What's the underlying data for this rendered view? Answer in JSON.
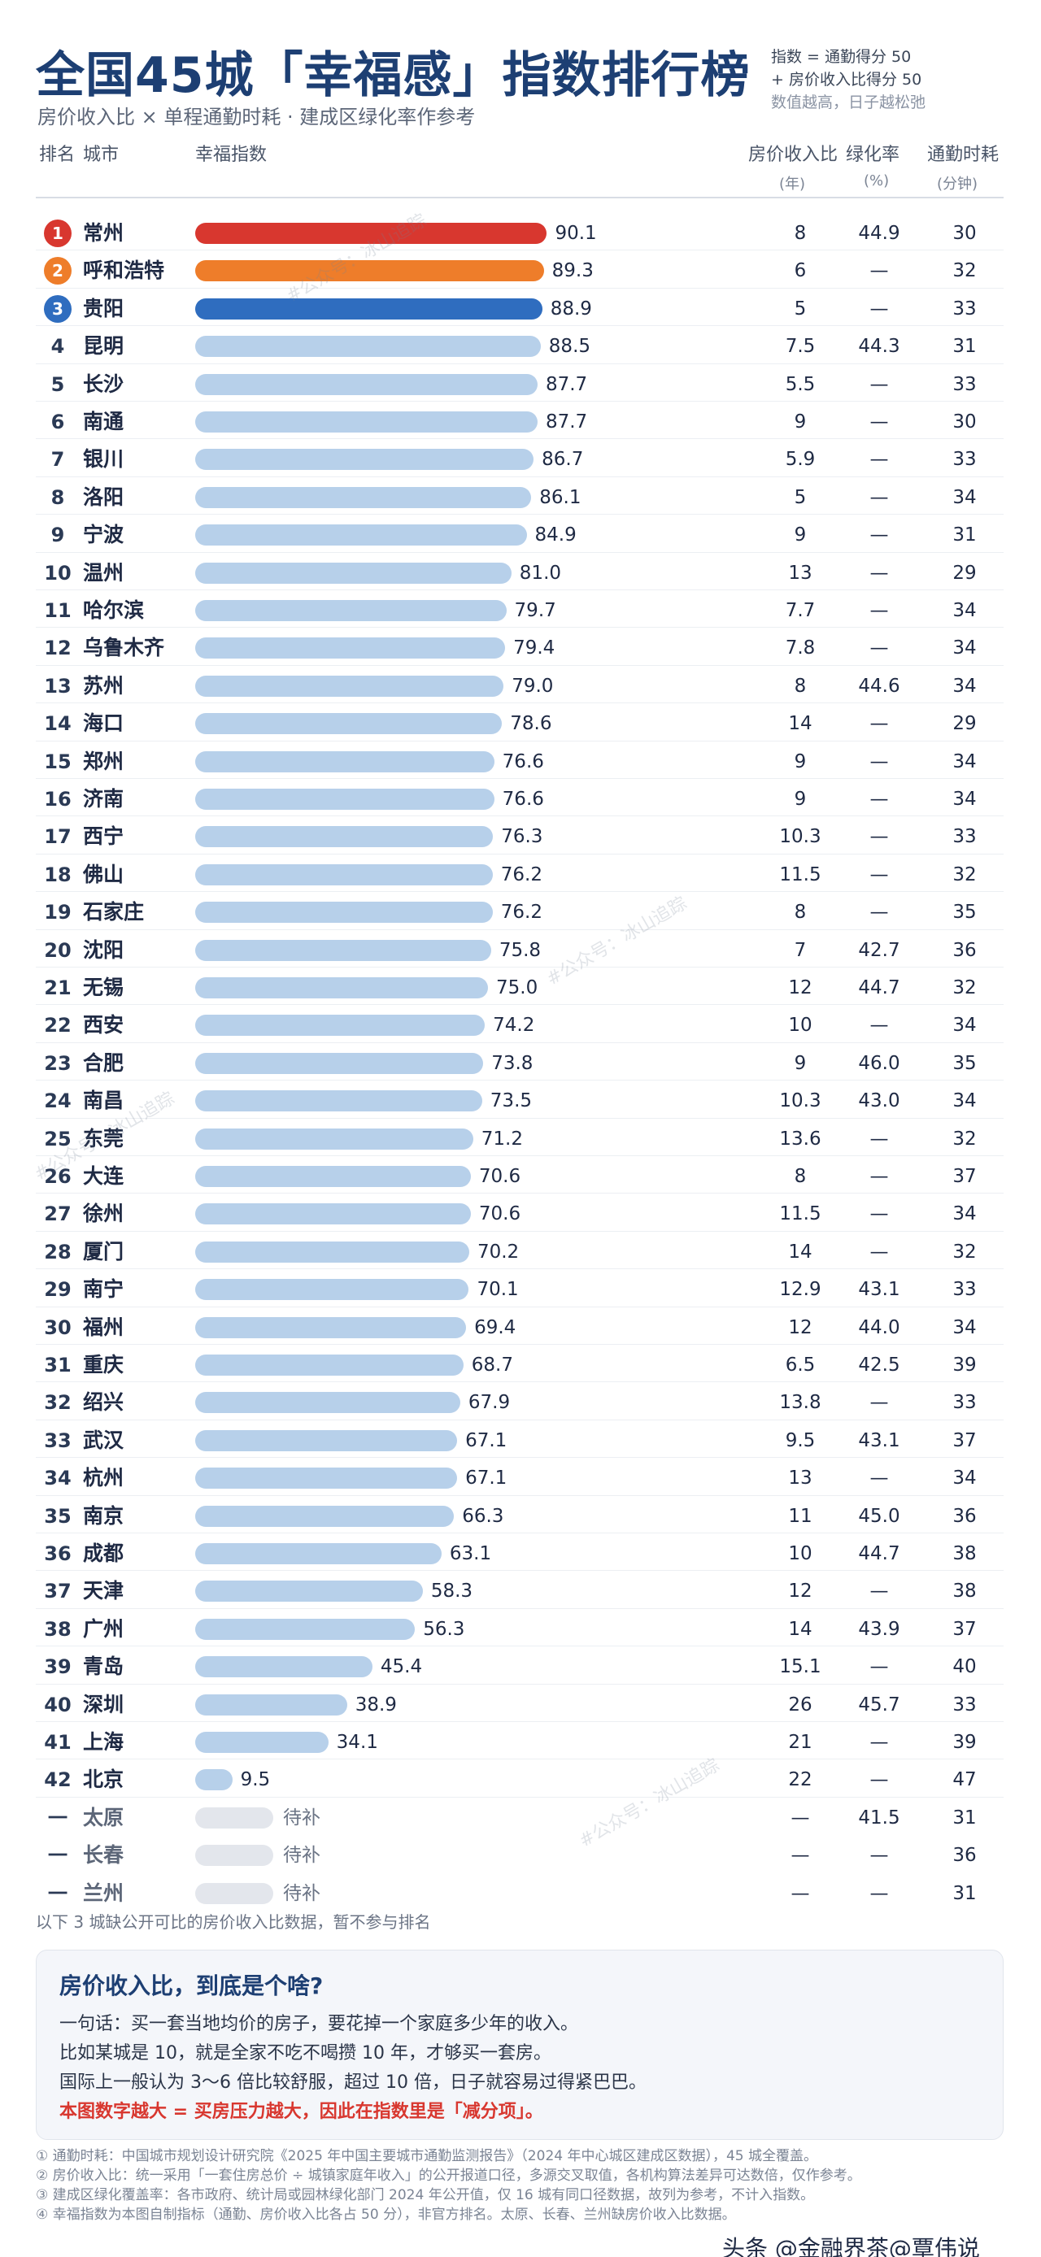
{
  "header": {
    "title": "全国45城「幸福感」指数排行榜",
    "subtitle": "房价收入比 × 单程通勤时耗 · 建成区绿化率作参考",
    "legend": [
      "指数 = 通勤得分 50",
      "+ 房价收入比得分 50",
      "数值越高，日子越松弛"
    ]
  },
  "columns": {
    "rank": "排名",
    "city": "城市",
    "index": "幸福指数",
    "ratio": "房价收入比",
    "ratio_unit": "(年)",
    "green": "绿化率",
    "green_unit": "(%)",
    "commute": "通勤时耗",
    "commute_unit": "(分钟)"
  },
  "colors": {
    "top1": "#d8372f",
    "top2": "#ee7d2a",
    "top3": "#2f6dbf",
    "bar": "#b7d0ea",
    "title": "#1d3f73"
  },
  "chart_data": {
    "type": "bar",
    "orientation": "horizontal",
    "title": "全国45城「幸福感」指数排行榜",
    "xlim": [
      0,
      100
    ],
    "rows": [
      {
        "rank": "1",
        "city": "常州",
        "index": 90.1,
        "ratio": "8",
        "green": "44.9",
        "commute": "30"
      },
      {
        "rank": "2",
        "city": "呼和浩特",
        "index": 89.3,
        "ratio": "6",
        "green": "—",
        "commute": "32"
      },
      {
        "rank": "3",
        "city": "贵阳",
        "index": 88.9,
        "ratio": "5",
        "green": "—",
        "commute": "33"
      },
      {
        "rank": "4",
        "city": "昆明",
        "index": 88.5,
        "ratio": "7.5",
        "green": "44.3",
        "commute": "31"
      },
      {
        "rank": "5",
        "city": "长沙",
        "index": 87.7,
        "ratio": "5.5",
        "green": "—",
        "commute": "33"
      },
      {
        "rank": "6",
        "city": "南通",
        "index": 87.7,
        "ratio": "9",
        "green": "—",
        "commute": "30"
      },
      {
        "rank": "7",
        "city": "银川",
        "index": 86.7,
        "ratio": "5.9",
        "green": "—",
        "commute": "33"
      },
      {
        "rank": "8",
        "city": "洛阳",
        "index": 86.1,
        "ratio": "5",
        "green": "—",
        "commute": "34"
      },
      {
        "rank": "9",
        "city": "宁波",
        "index": 84.9,
        "ratio": "9",
        "green": "—",
        "commute": "31"
      },
      {
        "rank": "10",
        "city": "温州",
        "index": 81.0,
        "ratio": "13",
        "green": "—",
        "commute": "29"
      },
      {
        "rank": "11",
        "city": "哈尔滨",
        "index": 79.7,
        "ratio": "7.7",
        "green": "—",
        "commute": "34"
      },
      {
        "rank": "12",
        "city": "乌鲁木齐",
        "index": 79.4,
        "ratio": "7.8",
        "green": "—",
        "commute": "34"
      },
      {
        "rank": "13",
        "city": "苏州",
        "index": 79.0,
        "ratio": "8",
        "green": "44.6",
        "commute": "34"
      },
      {
        "rank": "14",
        "city": "海口",
        "index": 78.6,
        "ratio": "14",
        "green": "—",
        "commute": "29"
      },
      {
        "rank": "15",
        "city": "郑州",
        "index": 76.6,
        "ratio": "9",
        "green": "—",
        "commute": "34"
      },
      {
        "rank": "16",
        "city": "济南",
        "index": 76.6,
        "ratio": "9",
        "green": "—",
        "commute": "34"
      },
      {
        "rank": "17",
        "city": "西宁",
        "index": 76.3,
        "ratio": "10.3",
        "green": "—",
        "commute": "33"
      },
      {
        "rank": "18",
        "city": "佛山",
        "index": 76.2,
        "ratio": "11.5",
        "green": "—",
        "commute": "32"
      },
      {
        "rank": "19",
        "city": "石家庄",
        "index": 76.2,
        "ratio": "8",
        "green": "—",
        "commute": "35"
      },
      {
        "rank": "20",
        "city": "沈阳",
        "index": 75.8,
        "ratio": "7",
        "green": "42.7",
        "commute": "36"
      },
      {
        "rank": "21",
        "city": "无锡",
        "index": 75.0,
        "ratio": "12",
        "green": "44.7",
        "commute": "32"
      },
      {
        "rank": "22",
        "city": "西安",
        "index": 74.2,
        "ratio": "10",
        "green": "—",
        "commute": "34"
      },
      {
        "rank": "23",
        "city": "合肥",
        "index": 73.8,
        "ratio": "9",
        "green": "46.0",
        "commute": "35"
      },
      {
        "rank": "24",
        "city": "南昌",
        "index": 73.5,
        "ratio": "10.3",
        "green": "43.0",
        "commute": "34"
      },
      {
        "rank": "25",
        "city": "东莞",
        "index": 71.2,
        "ratio": "13.6",
        "green": "—",
        "commute": "32"
      },
      {
        "rank": "26",
        "city": "大连",
        "index": 70.6,
        "ratio": "8",
        "green": "—",
        "commute": "37"
      },
      {
        "rank": "27",
        "city": "徐州",
        "index": 70.6,
        "ratio": "11.5",
        "green": "—",
        "commute": "34"
      },
      {
        "rank": "28",
        "city": "厦门",
        "index": 70.2,
        "ratio": "14",
        "green": "—",
        "commute": "32"
      },
      {
        "rank": "29",
        "city": "南宁",
        "index": 70.1,
        "ratio": "12.9",
        "green": "43.1",
        "commute": "33"
      },
      {
        "rank": "30",
        "city": "福州",
        "index": 69.4,
        "ratio": "12",
        "green": "44.0",
        "commute": "34"
      },
      {
        "rank": "31",
        "city": "重庆",
        "index": 68.7,
        "ratio": "6.5",
        "green": "42.5",
        "commute": "39"
      },
      {
        "rank": "32",
        "city": "绍兴",
        "index": 67.9,
        "ratio": "13.8",
        "green": "—",
        "commute": "33"
      },
      {
        "rank": "33",
        "city": "武汉",
        "index": 67.1,
        "ratio": "9.5",
        "green": "43.1",
        "commute": "37"
      },
      {
        "rank": "34",
        "city": "杭州",
        "index": 67.1,
        "ratio": "13",
        "green": "—",
        "commute": "34"
      },
      {
        "rank": "35",
        "city": "南京",
        "index": 66.3,
        "ratio": "11",
        "green": "45.0",
        "commute": "36"
      },
      {
        "rank": "36",
        "city": "成都",
        "index": 63.1,
        "ratio": "10",
        "green": "44.7",
        "commute": "38"
      },
      {
        "rank": "37",
        "city": "天津",
        "index": 58.3,
        "ratio": "12",
        "green": "—",
        "commute": "38"
      },
      {
        "rank": "38",
        "city": "广州",
        "index": 56.3,
        "ratio": "14",
        "green": "43.9",
        "commute": "37"
      },
      {
        "rank": "39",
        "city": "青岛",
        "index": 45.4,
        "ratio": "15.1",
        "green": "—",
        "commute": "40"
      },
      {
        "rank": "40",
        "city": "深圳",
        "index": 38.9,
        "ratio": "26",
        "green": "45.7",
        "commute": "33"
      },
      {
        "rank": "41",
        "city": "上海",
        "index": 34.1,
        "ratio": "21",
        "green": "—",
        "commute": "39"
      },
      {
        "rank": "42",
        "city": "北京",
        "index": 9.5,
        "ratio": "22",
        "green": "—",
        "commute": "47"
      }
    ],
    "pending_rows": [
      {
        "rank": "一",
        "city": "太原",
        "status": "待补",
        "ratio": "—",
        "green": "41.5",
        "commute": "31"
      },
      {
        "rank": "一",
        "city": "长春",
        "status": "待补",
        "ratio": "—",
        "green": "—",
        "commute": "36"
      },
      {
        "rank": "一",
        "city": "兰州",
        "status": "待补",
        "ratio": "—",
        "green": "—",
        "commute": "31"
      }
    ]
  },
  "note": "以下 3 城缺公开可比的房价收入比数据，暂不参与排名",
  "explain": {
    "title": "房价收入比，到底是个啥?",
    "line1": "一句话：买一套当地均价的房子，要花掉一个家庭多少年的收入。",
    "line2": "比如某城是 10，就是全家不吃不喝攒 10 年，才够买一套房。",
    "line3": "国际上一般认为 3～6 倍比较舒服，超过 10 倍，日子就容易过得紧巴巴。",
    "line4": "本图数字越大 = 买房压力越大，因此在指数里是「减分项」。"
  },
  "footnotes": [
    "① 通勤时耗：中国城市规划设计研究院《2025 年中国主要城市通勤监测报告》（2024 年中心城区建成区数据），45 城全覆盖。",
    "② 房价收入比：统一采用「一套住房总价 ÷ 城镇家庭年收入」的公开报道口径，多源交叉取值，各机构算法差异可达数倍，仅作参考。",
    "③ 建成区绿化覆盖率：各市政府、统计局或园林绿化部门 2024 年公开值，仅 16 城有同口径数据，故列为参考，不计入指数。",
    "④ 幸福指数为本图自制指标（通勤、房价收入比各占 50 分），非官方排名。太原、长春、兰州缺房价收入比数据。"
  ],
  "watermark": "#公众号：冰山追踪",
  "signature": "头条 @金融界茶@覃伟说"
}
